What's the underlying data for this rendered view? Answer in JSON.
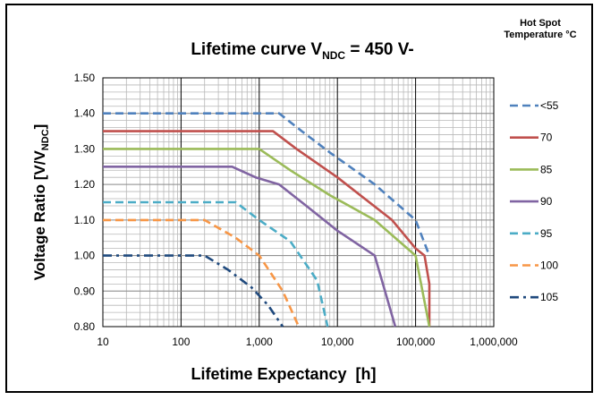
{
  "chart_data": {
    "type": "line",
    "title": {
      "main": "Lifetime curve V",
      "subscript": "NDC",
      "suffix": " = 450 V-"
    },
    "xlabel": "Lifetime Expectancy  [h]",
    "ylabel": {
      "main": "Voltage Ratio [V/V",
      "subscript": "NDC",
      "suffix": "]"
    },
    "legend_title": [
      "Hot Spot",
      "Temperature °C"
    ],
    "legend_position": "right",
    "x_scale": "log",
    "xlim": [
      10,
      1000000
    ],
    "ylim": [
      0.8,
      1.5
    ],
    "grid": true,
    "x_ticks": [
      {
        "value": 10,
        "label": "10"
      },
      {
        "value": 100,
        "label": "100"
      },
      {
        "value": 1000,
        "label": "1,000"
      },
      {
        "value": 10000,
        "label": "10,000"
      },
      {
        "value": 100000,
        "label": "100,000"
      },
      {
        "value": 1000000,
        "label": "1,000,000"
      }
    ],
    "y_ticks": [
      {
        "value": 0.8,
        "label": "0.80"
      },
      {
        "value": 0.9,
        "label": "0.90"
      },
      {
        "value": 1.0,
        "label": "1.00"
      },
      {
        "value": 1.1,
        "label": "1.10"
      },
      {
        "value": 1.2,
        "label": "1.20"
      },
      {
        "value": 1.3,
        "label": "1.30"
      },
      {
        "value": 1.4,
        "label": "1.40"
      },
      {
        "value": 1.5,
        "label": "1.50"
      }
    ],
    "series": [
      {
        "name": "<55",
        "color": "#4f81bd",
        "dash": "dash",
        "points": [
          [
            10,
            1.4
          ],
          [
            1800,
            1.4
          ],
          [
            3500,
            1.35
          ],
          [
            8000,
            1.29
          ],
          [
            30000,
            1.2
          ],
          [
            100000,
            1.1
          ],
          [
            150000,
            1.0
          ]
        ]
      },
      {
        "name": "70",
        "color": "#c0504d",
        "dash": "solid",
        "points": [
          [
            10,
            1.35
          ],
          [
            1500,
            1.35
          ],
          [
            3000,
            1.3
          ],
          [
            10000,
            1.22
          ],
          [
            50000,
            1.1
          ],
          [
            100000,
            1.02
          ],
          [
            130000,
            1.0
          ],
          [
            150000,
            0.92
          ],
          [
            150000,
            0.8
          ]
        ]
      },
      {
        "name": "85",
        "color": "#9bbb59",
        "dash": "solid",
        "points": [
          [
            10,
            1.3
          ],
          [
            1000,
            1.3
          ],
          [
            2500,
            1.24
          ],
          [
            8000,
            1.17
          ],
          [
            30000,
            1.1
          ],
          [
            100000,
            1.0
          ],
          [
            150000,
            0.8
          ]
        ]
      },
      {
        "name": "90",
        "color": "#8064a2",
        "dash": "solid",
        "points": [
          [
            10,
            1.25
          ],
          [
            450,
            1.25
          ],
          [
            900,
            1.22
          ],
          [
            1800,
            1.2
          ],
          [
            4000,
            1.14
          ],
          [
            10000,
            1.07
          ],
          [
            30000,
            1.0
          ],
          [
            55000,
            0.8
          ]
        ]
      },
      {
        "name": "95",
        "color": "#4bacc6",
        "dash": "dash",
        "points": [
          [
            10,
            1.15
          ],
          [
            500,
            1.15
          ],
          [
            1000,
            1.1
          ],
          [
            2500,
            1.04
          ],
          [
            5500,
            0.93
          ],
          [
            7500,
            0.8
          ]
        ]
      },
      {
        "name": "100",
        "color": "#f79646",
        "dash": "dash",
        "points": [
          [
            10,
            1.1
          ],
          [
            200,
            1.1
          ],
          [
            500,
            1.05
          ],
          [
            1000,
            1.0
          ],
          [
            2000,
            0.9
          ],
          [
            3200,
            0.8
          ]
        ]
      },
      {
        "name": "105",
        "color": "#1f497d",
        "dash": "dashdot",
        "points": [
          [
            10,
            1.0
          ],
          [
            200,
            1.0
          ],
          [
            400,
            0.96
          ],
          [
            800,
            0.91
          ],
          [
            1300,
            0.86
          ],
          [
            2000,
            0.8
          ]
        ]
      }
    ]
  }
}
